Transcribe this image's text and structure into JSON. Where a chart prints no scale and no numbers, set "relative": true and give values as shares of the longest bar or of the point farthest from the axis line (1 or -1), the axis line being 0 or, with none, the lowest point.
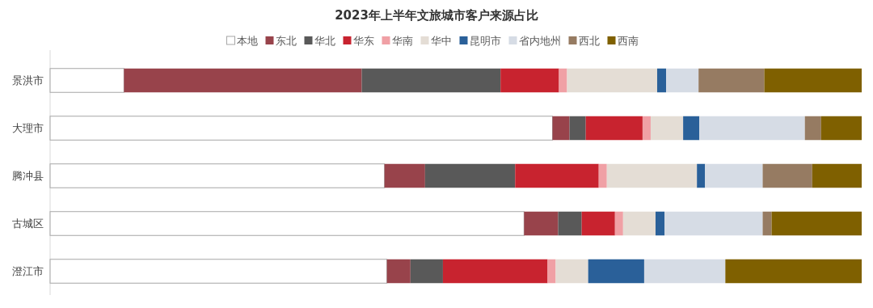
{
  "chart_data": {
    "type": "bar",
    "orientation": "horizontal",
    "stacked": true,
    "relative": true,
    "title": "2023年上半年文旅城市客户来源占比",
    "legend": "top",
    "categories": [
      "景洪市",
      "大理市",
      "腾冲县",
      "古城区",
      "澄江市"
    ],
    "series": [
      {
        "name": "本地",
        "color": "#ffffff",
        "values": [
          0.091,
          0.619,
          0.412,
          0.584,
          0.415
        ]
      },
      {
        "name": "东北",
        "color": "#98434b",
        "values": [
          0.293,
          0.021,
          0.05,
          0.042,
          0.029
        ]
      },
      {
        "name": "华北",
        "color": "#595959",
        "values": [
          0.171,
          0.02,
          0.111,
          0.029,
          0.04
        ]
      },
      {
        "name": "华东",
        "color": "#c8232f",
        "values": [
          0.072,
          0.07,
          0.103,
          0.041,
          0.129
        ]
      },
      {
        "name": "华南",
        "color": "#f0a0a5",
        "values": [
          0.01,
          0.01,
          0.01,
          0.01,
          0.01
        ]
      },
      {
        "name": "华中",
        "color": "#e4ddd5",
        "values": [
          0.111,
          0.04,
          0.111,
          0.04,
          0.04
        ]
      },
      {
        "name": "昆明市",
        "color": "#2a6099",
        "values": [
          0.011,
          0.02,
          0.01,
          0.011,
          0.069
        ]
      },
      {
        "name": "省内地州",
        "color": "#d6dce5",
        "values": [
          0.04,
          0.13,
          0.071,
          0.121,
          0.1
        ]
      },
      {
        "name": "西北",
        "color": "#967b62",
        "values": [
          0.081,
          0.02,
          0.061,
          0.011,
          0
        ]
      },
      {
        "name": "西南",
        "color": "#7f6000",
        "values": [
          0.12,
          0.05,
          0.061,
          0.111,
          0.168
        ]
      }
    ]
  }
}
